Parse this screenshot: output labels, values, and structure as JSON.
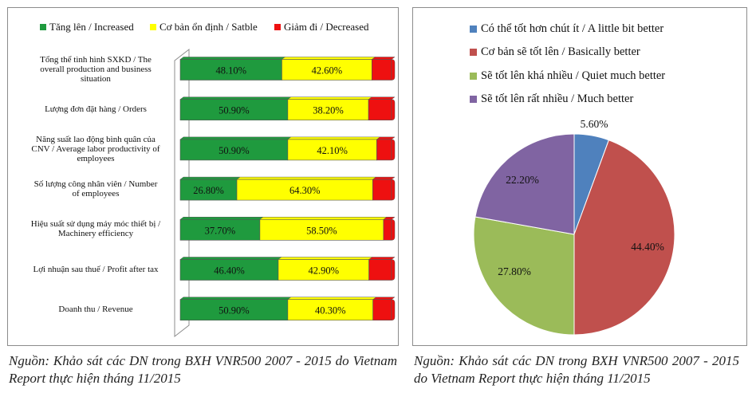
{
  "chart_data": [
    {
      "type": "bar",
      "stacked": true,
      "orientation": "horizontal",
      "legend": [
        {
          "name": "Tăng lên / Increased",
          "color": "#1f9a3e"
        },
        {
          "name": "Cơ bản ổn định / Satble",
          "color": "#ffff00"
        },
        {
          "name": "Giảm đi / Decreased",
          "color": "#ee1010"
        }
      ],
      "categories": [
        "Tổng thể tình hình SXKD / The overall production and business situation",
        "Lượng đơn đặt hàng / Orders",
        "Năng suất lao động bình quân của CNV / Average labor productivity of employees",
        "Số lượng công nhân viên / Number of employees",
        "Hiệu suất sử dụng máy móc thiết bị / Machinery efficiency",
        "Lợi nhuận sau thuế / Profit after tax",
        "Doanh thu / Revenue"
      ],
      "category_lines": [
        [
          "Tổng thể tình hình SXKD / The",
          "overall production and business",
          "situation"
        ],
        [
          "Lượng đơn đặt hàng / Orders"
        ],
        [
          "Năng suất lao động bình quân của",
          "CNV / Average labor productivity of",
          "employees"
        ],
        [
          "Số lượng công nhân viên / Number",
          "of employees"
        ],
        [
          "Hiệu suất sử dụng máy móc thiết bị /",
          "Machinery efficiency"
        ],
        [
          "Lợi nhuận sau thuế / Profit after tax"
        ],
        [
          "Doanh thu / Revenue"
        ]
      ],
      "series": [
        {
          "name": "Tăng lên / Increased",
          "values": [
            48.1,
            50.9,
            50.9,
            26.8,
            37.7,
            46.4,
            50.9
          ],
          "labels": [
            "48.10%",
            "50.90%",
            "50.90%",
            "26.80%",
            "37.70%",
            "46.40%",
            "50.90%"
          ]
        },
        {
          "name": "Cơ bản ổn định / Satble",
          "values": [
            42.6,
            38.2,
            42.1,
            64.3,
            58.5,
            42.9,
            40.3
          ],
          "labels": [
            "42.60%",
            "38.20%",
            "42.10%",
            "64.30%",
            "58.50%",
            "42.90%",
            "40.30%"
          ]
        },
        {
          "name": "Giảm đi / Decreased",
          "values": [
            9.3,
            10.9,
            7.0,
            8.9,
            3.8,
            10.7,
            8.8
          ]
        }
      ],
      "xlim": [
        0,
        100
      ]
    },
    {
      "type": "pie",
      "slices": [
        {
          "name": "Có thể tốt hơn chút ít / A little bit better",
          "value": 5.6,
          "label": "5.60%",
          "color": "#4f81bd"
        },
        {
          "name": "Cơ bản sẽ tốt lên / Basically better",
          "value": 44.4,
          "label": "44.40%",
          "color": "#c0504d"
        },
        {
          "name": "Sẽ tốt lên khá nhiều / Quiet much better",
          "value": 27.8,
          "label": "27.80%",
          "color": "#9bbb59"
        },
        {
          "name": "Sẽ tốt lên rất nhiều / Much better",
          "value": 22.2,
          "label": "22.20%",
          "color": "#8064a2"
        }
      ]
    }
  ],
  "sources": {
    "left": "Nguồn: Khảo sát các DN trong BXH VNR500 2007 - 2015 do Vietnam Report thực hiện tháng 11/2015",
    "right": "Nguồn: Khảo sát các DN trong BXH VNR500 2007 - 2015 do Vietnam Report thực hiện tháng 11/2015"
  }
}
